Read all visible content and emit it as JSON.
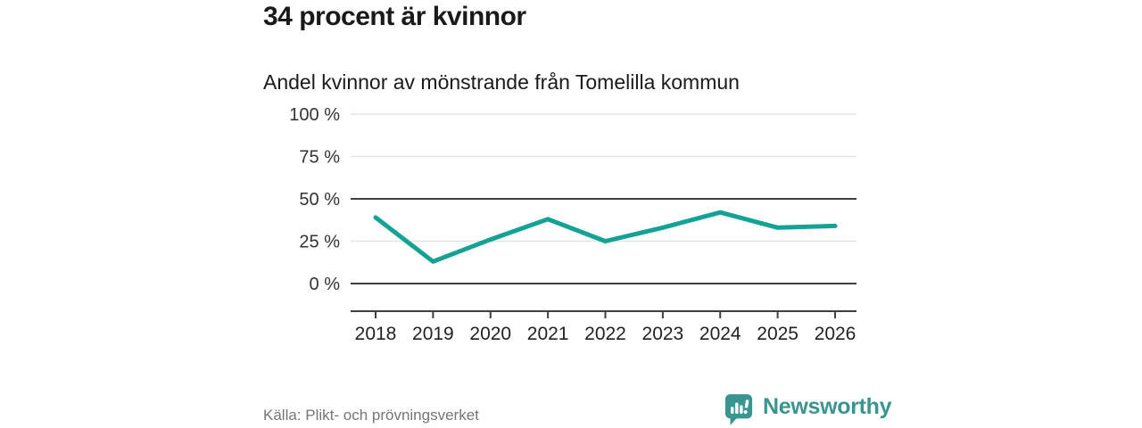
{
  "header": {
    "title": "34 procent är kvinnor",
    "subtitle": "Andel kvinnor av mönstrande från Tomelilla kommun"
  },
  "chart_data": {
    "type": "line",
    "title": "34 procent är kvinnor",
    "subtitle": "Andel kvinnor av mönstrande från Tomelilla kommun",
    "x": [
      2018,
      2019,
      2020,
      2021,
      2022,
      2023,
      2024,
      2025,
      2026
    ],
    "series": [
      {
        "name": "Andel kvinnor av mönstrande",
        "values": [
          39,
          13,
          26,
          38,
          25,
          33,
          42,
          33,
          34
        ]
      }
    ],
    "unit": "%",
    "xlabel": "",
    "ylabel": "",
    "ylim": [
      0,
      100
    ],
    "yticks": [
      0,
      25,
      50,
      75,
      100
    ],
    "ytick_labels": [
      "0 %",
      "25 %",
      "50 %",
      "75 %",
      "100 %"
    ],
    "emphasized_gridlines": [
      0,
      50
    ],
    "grid": true,
    "legend_position": "none",
    "line_color": "#14a294"
  },
  "footer": {
    "source": "Källa: Plikt- och prövningsverket",
    "brand": "Newsworthy"
  },
  "colors": {
    "accent_teal": "#14a294",
    "brand_teal": "#3a948f",
    "grid_light": "#e4e4e4",
    "grid_dark": "#3f3f3f",
    "text_dark": "#1a1a1a",
    "text_axis": "#333333",
    "text_muted": "#757575"
  }
}
